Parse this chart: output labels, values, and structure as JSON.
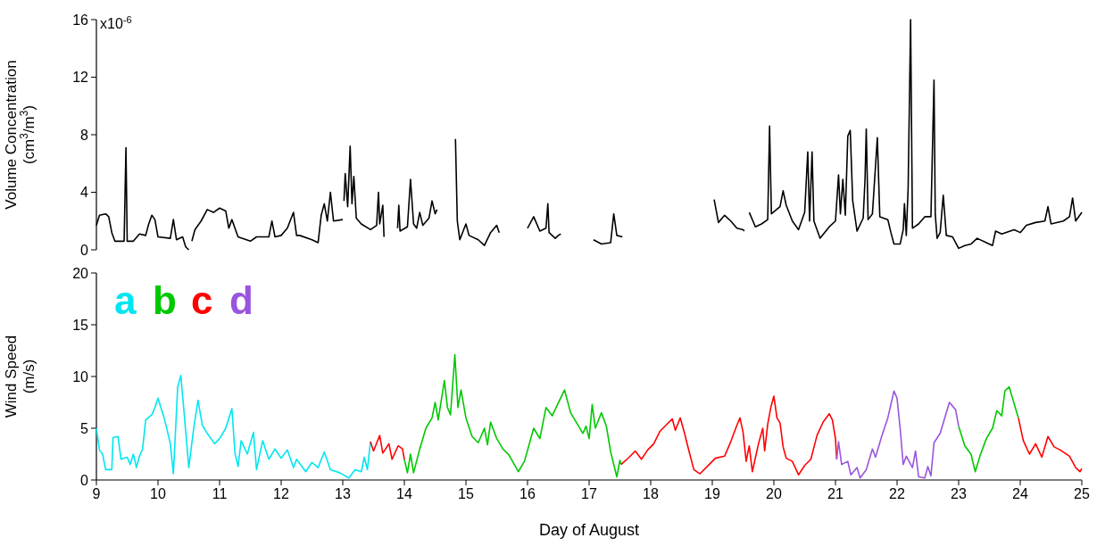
{
  "chart_data": [
    {
      "type": "line",
      "ylabel": "Volume Concentration (cm$^{3}$/m$^{3}$)",
      "xlim": [
        9,
        25
      ],
      "ylim": [
        0,
        16
      ],
      "yticks": [
        0,
        4,
        8,
        12,
        16
      ],
      "annotations": [
        "x10$^{-6}$"
      ],
      "tick_labels": "y",
      "series": [
        {
          "color": "#000000",
          "x": [
            9.0,
            9.05,
            9.15,
            9.2,
            9.25,
            9.3,
            9.45,
            9.48,
            9.5,
            9.6,
            9.7,
            9.8,
            9.85,
            9.9,
            9.95,
            10.0,
            10.2,
            10.25,
            10.3,
            10.4,
            10.45,
            10.5,
            10.52,
            10.55,
            10.6,
            10.7,
            10.8,
            10.9,
            11.0,
            11.1,
            11.15,
            11.2,
            11.3,
            11.5,
            11.6,
            11.8,
            11.85,
            11.9,
            12.0,
            12.1,
            12.2,
            12.25,
            12.3,
            12.5,
            12.6,
            12.65,
            12.7,
            12.75,
            12.8,
            12.85,
            13.0,
            13.01,
            13.02,
            13.04,
            13.08,
            13.12,
            13.15,
            13.18,
            13.22,
            13.3,
            13.45,
            13.55,
            13.58,
            13.6,
            13.65,
            13.67,
            13.78,
            13.89,
            13.91,
            13.93,
            14.05,
            14.1,
            14.15,
            14.2,
            14.25,
            14.3,
            14.4,
            14.45,
            14.5,
            14.53,
            14.7,
            14.83,
            14.86,
            14.9,
            15.0,
            15.05,
            15.2,
            15.3,
            15.4,
            15.5,
            15.54,
            15.8,
            16.0,
            16.1,
            16.2,
            16.3,
            16.33,
            16.35,
            16.45,
            16.5,
            16.54,
            16.8,
            17.07,
            17.2,
            17.35,
            17.4,
            17.45,
            17.54,
            18.3,
            19.03,
            19.1,
            19.2,
            19.3,
            19.4,
            19.5,
            19.52,
            19.56,
            19.6,
            19.7,
            19.8,
            19.9,
            19.93,
            19.96,
            20.1,
            20.15,
            20.2,
            20.3,
            20.4,
            20.5,
            20.55,
            20.58,
            20.62,
            20.65,
            20.75,
            20.9,
            21.0,
            21.05,
            21.08,
            21.12,
            21.16,
            21.2,
            21.24,
            21.28,
            21.35,
            21.45,
            21.48,
            21.5,
            21.53,
            21.6,
            21.68,
            21.72,
            21.85,
            21.9,
            21.95,
            22.05,
            22.1,
            22.12,
            22.15,
            22.18,
            22.22,
            22.25,
            22.35,
            22.45,
            22.55,
            22.6,
            22.62,
            22.65,
            22.7,
            22.75,
            22.8,
            22.9,
            23.0,
            23.1,
            23.2,
            23.3,
            23.45,
            23.55,
            23.6,
            23.7,
            23.9,
            24.0,
            24.1,
            24.25,
            24.4,
            24.45,
            24.5,
            24.7,
            24.8,
            24.85,
            24.9,
            25.0
          ],
          "values": [
            1.7,
            2.4,
            2.5,
            2.3,
            1.2,
            0.6,
            0.6,
            7.1,
            0.6,
            0.6,
            1.1,
            1.0,
            1.8,
            2.4,
            2.1,
            0.9,
            0.8,
            2.1,
            0.7,
            0.9,
            0.2,
            0.0,
            null,
            0.6,
            1.4,
            2.0,
            2.8,
            2.6,
            2.9,
            2.7,
            1.5,
            2.1,
            0.9,
            0.6,
            0.9,
            0.9,
            2.0,
            0.9,
            1.0,
            1.5,
            2.6,
            1.0,
            1.0,
            0.7,
            0.5,
            2.4,
            3.2,
            2.0,
            4.0,
            2.0,
            2.1,
            null,
            3.4,
            5.3,
            3.0,
            7.2,
            3.2,
            5.1,
            2.2,
            1.8,
            1.4,
            1.7,
            4.0,
            1.8,
            3.1,
            0.9,
            null,
            1.5,
            3.1,
            1.3,
            1.6,
            4.9,
            1.8,
            1.5,
            2.6,
            1.7,
            2.2,
            3.4,
            2.5,
            2.8,
            null,
            7.7,
            2.0,
            0.7,
            1.8,
            1.0,
            0.7,
            0.3,
            1.2,
            1.7,
            1.2,
            null,
            1.5,
            2.3,
            1.3,
            1.5,
            3.2,
            1.2,
            0.8,
            1.0,
            1.1,
            null,
            0.7,
            0.4,
            0.5,
            2.5,
            1.0,
            0.9,
            null,
            3.5,
            1.9,
            2.4,
            2.0,
            1.5,
            1.4,
            1.3,
            null,
            2.6,
            1.6,
            1.8,
            2.1,
            8.6,
            2.5,
            3.0,
            4.1,
            3.1,
            2.0,
            1.4,
            2.6,
            6.8,
            2.0,
            6.8,
            2.0,
            0.8,
            1.6,
            2.0,
            5.2,
            2.5,
            4.9,
            2.4,
            7.9,
            8.3,
            3.4,
            1.3,
            2.2,
            4.9,
            8.4,
            2.1,
            2.5,
            7.8,
            2.3,
            2.1,
            1.2,
            0.4,
            0.4,
            1.4,
            3.2,
            1.0,
            4.3,
            16.0,
            1.5,
            1.8,
            2.3,
            2.3,
            11.8,
            2.5,
            0.8,
            1.2,
            3.8,
            1.0,
            0.9,
            0.1,
            0.3,
            0.4,
            0.8,
            0.5,
            0.3,
            1.3,
            1.1,
            1.4,
            1.2,
            1.7,
            1.9,
            2.0,
            3.0,
            1.8,
            2.0,
            2.3,
            3.6,
            2.0,
            2.6
          ]
        }
      ]
    },
    {
      "type": "line",
      "xlabel": "Day of August",
      "ylabel": "Wind Speed (m/s)",
      "xlim": [
        9,
        25
      ],
      "xticks": [
        9,
        10,
        11,
        12,
        13,
        14,
        15,
        16,
        17,
        18,
        19,
        20,
        21,
        22,
        23,
        24,
        25
      ],
      "ylim": [
        0,
        20
      ],
      "yticks": [
        0,
        5,
        10,
        15,
        20
      ],
      "legend": "top left",
      "series": [
        {
          "name": "a",
          "color": "#00e6f0",
          "x": [
            9.0,
            9.05,
            9.1,
            9.15,
            9.25,
            9.27,
            9.35,
            9.4,
            9.5,
            9.55,
            9.6,
            9.65,
            9.7,
            9.75,
            9.8,
            9.9,
            9.95,
            10.0,
            10.1,
            10.15,
            10.2,
            10.25,
            10.32,
            10.37,
            10.42,
            10.5,
            10.58,
            10.65,
            10.72,
            10.8,
            10.92,
            11.0,
            11.1,
            11.2,
            11.25,
            11.3,
            11.35,
            11.45,
            11.55,
            11.6,
            11.7,
            11.8,
            11.9,
            12.0,
            12.1,
            12.2,
            12.25,
            12.4,
            12.5,
            12.6,
            12.7,
            12.8,
            12.95,
            13.1,
            13.2,
            13.3,
            13.35,
            13.4,
            13.45
          ],
          "values": [
            5.0,
            2.9,
            2.5,
            1.0,
            1.0,
            4.1,
            4.2,
            2.0,
            2.2,
            1.5,
            2.5,
            1.2,
            2.3,
            3.0,
            5.8,
            6.3,
            7.0,
            7.9,
            6.0,
            4.8,
            3.5,
            0.6,
            9.0,
            10.1,
            6.8,
            1.2,
            5.0,
            7.7,
            5.3,
            4.5,
            3.5,
            4.0,
            5.0,
            6.9,
            2.6,
            1.3,
            3.8,
            2.5,
            4.6,
            1.0,
            3.8,
            2.0,
            3.0,
            2.1,
            2.9,
            1.2,
            2.0,
            0.8,
            1.7,
            1.2,
            2.7,
            1.0,
            0.7,
            0.2,
            1.0,
            0.8,
            2.2,
            1.0,
            3.7
          ]
        },
        {
          "name": "b",
          "color": "#00c800",
          "x": [
            14.0,
            14.05,
            14.1,
            14.15,
            14.25,
            14.35,
            14.45,
            14.5,
            14.55,
            14.65,
            14.7,
            14.75,
            14.82,
            14.87,
            14.92,
            15.0,
            15.1,
            15.2,
            15.3,
            15.35,
            15.4,
            15.5,
            15.6,
            15.7,
            15.85,
            15.95,
            16.1,
            16.2,
            16.3,
            16.4,
            16.6,
            16.7,
            16.9,
            16.95,
            17.0,
            17.05,
            17.1,
            17.2,
            17.28,
            17.35,
            17.45,
            17.5,
            17.52,
            20.0,
            23.0,
            23.1,
            23.2,
            23.27,
            23.35,
            23.45,
            23.55,
            23.62,
            23.7,
            23.75,
            23.82,
            23.9,
            23.97
          ],
          "values": [
            2.0,
            0.7,
            2.5,
            0.7,
            3.0,
            5.0,
            6.0,
            7.5,
            5.8,
            9.6,
            7.0,
            6.3,
            12.1,
            7.0,
            8.7,
            6.0,
            4.2,
            3.6,
            5.0,
            3.4,
            5.6,
            4.0,
            3.0,
            2.4,
            0.8,
            1.8,
            5.0,
            4.0,
            7.0,
            6.2,
            8.7,
            6.5,
            4.5,
            5.2,
            4.0,
            7.3,
            5.0,
            6.5,
            5.2,
            2.7,
            0.3,
            1.9,
            1.5,
            null,
            5.2,
            3.3,
            2.5,
            0.8,
            2.4,
            4.0,
            5.0,
            6.7,
            6.2,
            8.6,
            9.0,
            7.4,
            6.0
          ]
        },
        {
          "name": "c",
          "color": "#ff0000",
          "x": [
            13.45,
            13.5,
            13.6,
            13.65,
            13.75,
            13.8,
            13.9,
            13.97,
            14.0,
            15.0,
            17.52,
            17.65,
            17.75,
            17.85,
            17.95,
            18.05,
            18.15,
            18.25,
            18.35,
            18.4,
            18.48,
            18.55,
            18.6,
            18.7,
            18.8,
            18.95,
            19.05,
            19.2,
            19.3,
            19.4,
            19.45,
            19.5,
            19.55,
            19.6,
            19.65,
            19.75,
            19.82,
            19.85,
            19.9,
            19.95,
            20.0,
            20.05,
            20.1,
            20.15,
            20.2,
            20.3,
            20.4,
            20.5,
            20.6,
            20.7,
            20.8,
            20.9,
            20.95,
            21.0,
            21.02,
            22.5,
            23.97,
            24.05,
            24.15,
            24.25,
            24.35,
            24.45,
            24.55,
            24.65,
            24.8,
            24.9,
            24.97,
            25.0
          ],
          "values": [
            3.7,
            2.8,
            4.3,
            2.6,
            3.5,
            2.0,
            3.3,
            3.0,
            2.0,
            null,
            1.5,
            2.2,
            2.8,
            2.0,
            2.9,
            3.5,
            4.7,
            5.3,
            5.9,
            4.8,
            6.0,
            4.5,
            3.3,
            1.0,
            0.6,
            1.5,
            2.1,
            2.3,
            3.7,
            5.3,
            6.0,
            4.6,
            1.8,
            3.3,
            0.8,
            3.5,
            5.0,
            2.8,
            5.4,
            7.0,
            8.1,
            6.0,
            5.5,
            3.2,
            2.1,
            1.8,
            0.5,
            1.4,
            2.0,
            4.3,
            5.6,
            6.4,
            5.8,
            4.0,
            2.0,
            null,
            6.0,
            3.8,
            2.5,
            3.5,
            2.2,
            4.2,
            3.2,
            2.9,
            2.3,
            1.2,
            0.8,
            1.1
          ]
        },
        {
          "name": "d",
          "color": "#9955dd",
          "x": [
            21.02,
            21.05,
            21.1,
            21.2,
            21.25,
            21.35,
            21.4,
            21.5,
            21.6,
            21.65,
            21.75,
            21.85,
            21.95,
            22.0,
            22.05,
            22.1,
            22.15,
            22.25,
            22.3,
            22.35,
            22.45,
            22.5,
            22.55,
            22.6,
            22.7,
            22.8,
            22.85,
            22.95,
            23.0
          ],
          "values": [
            2.0,
            3.7,
            1.5,
            1.8,
            0.5,
            1.2,
            0.2,
            1.0,
            3.0,
            2.2,
            4.2,
            6.0,
            8.6,
            7.9,
            5.0,
            1.5,
            2.3,
            1.2,
            2.8,
            0.3,
            0.2,
            1.3,
            0.4,
            3.6,
            4.5,
            6.5,
            7.5,
            6.8,
            5.2
          ]
        }
      ]
    }
  ]
}
